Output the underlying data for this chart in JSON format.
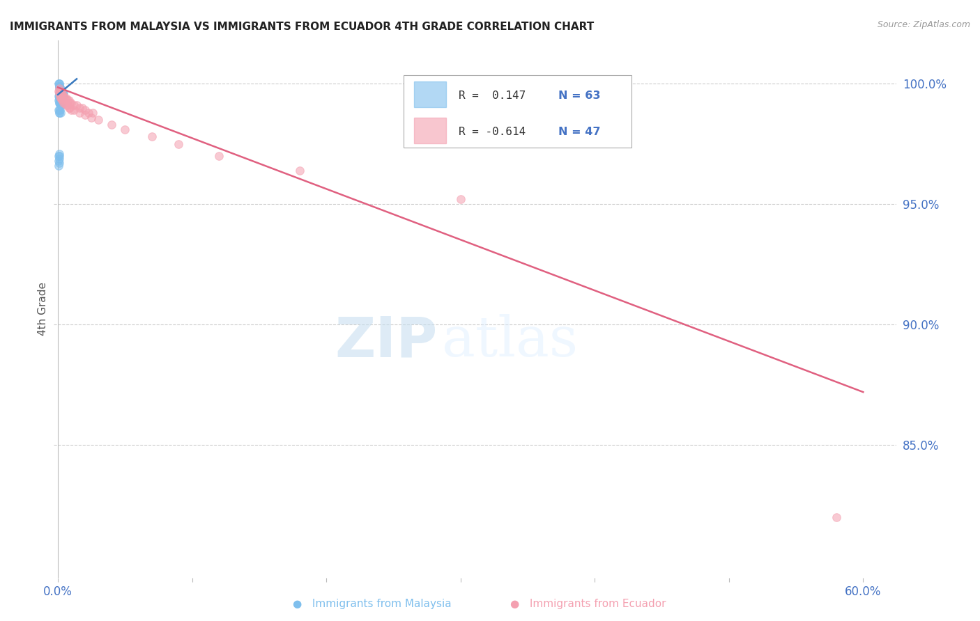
{
  "title": "IMMIGRANTS FROM MALAYSIA VS IMMIGRANTS FROM ECUADOR 4TH GRADE CORRELATION CHART",
  "source": "Source: ZipAtlas.com",
  "ylabel": "4th Grade",
  "yticks": [
    "100.0%",
    "95.0%",
    "90.0%",
    "85.0%"
  ],
  "ytick_values": [
    1.0,
    0.95,
    0.9,
    0.85
  ],
  "ymin": 0.795,
  "ymax": 1.018,
  "xmin": -0.003,
  "xmax": 0.625,
  "malaysia_color": "#7fbfed",
  "ecuador_color": "#f4a0b0",
  "malaysia_line_color": "#3a7abf",
  "ecuador_line_color": "#e06080",
  "legend_R_malaysia": "R =  0.147",
  "legend_N_malaysia": "N = 63",
  "legend_R_ecuador": "R = -0.614",
  "legend_N_ecuador": "N = 47",
  "malaysia_x": [
    0.0005,
    0.0008,
    0.001,
    0.001,
    0.001,
    0.0012,
    0.0012,
    0.0015,
    0.0015,
    0.0015,
    0.0018,
    0.0018,
    0.0018,
    0.002,
    0.002,
    0.002,
    0.0022,
    0.0022,
    0.0025,
    0.0025,
    0.0028,
    0.0028,
    0.003,
    0.003,
    0.003,
    0.0032,
    0.0035,
    0.0035,
    0.0038,
    0.004,
    0.0005,
    0.0008,
    0.001,
    0.001,
    0.0012,
    0.0015,
    0.0015,
    0.0018,
    0.0018,
    0.002,
    0.0005,
    0.0008,
    0.001,
    0.0012,
    0.0015,
    0.0015,
    0.0018,
    0.002,
    0.0022,
    0.0025,
    0.0005,
    0.0008,
    0.001,
    0.0012,
    0.0015,
    0.0018,
    0.0005,
    0.0008,
    0.001,
    0.0005,
    0.0012,
    0.0008,
    0.0005
  ],
  "malaysia_y": [
    1.0,
    1.0,
    1.0,
    0.999,
    0.999,
    0.999,
    0.998,
    0.998,
    0.998,
    0.997,
    0.997,
    0.997,
    0.997,
    0.997,
    0.998,
    0.996,
    0.997,
    0.996,
    0.997,
    0.996,
    0.997,
    0.996,
    0.997,
    0.996,
    0.995,
    0.997,
    0.996,
    0.995,
    0.996,
    0.996,
    0.995,
    0.996,
    0.995,
    0.994,
    0.995,
    0.994,
    0.993,
    0.994,
    0.993,
    0.994,
    0.993,
    0.993,
    0.992,
    0.992,
    0.993,
    0.992,
    0.992,
    0.991,
    0.992,
    0.991,
    0.989,
    0.989,
    0.988,
    0.988,
    0.989,
    0.988,
    0.97,
    0.97,
    0.971,
    0.968,
    0.969,
    0.967,
    0.966
  ],
  "ecuador_x": [
    0.0008,
    0.0012,
    0.0018,
    0.0025,
    0.003,
    0.0035,
    0.004,
    0.005,
    0.006,
    0.007,
    0.008,
    0.009,
    0.01,
    0.012,
    0.014,
    0.016,
    0.018,
    0.02,
    0.023,
    0.026,
    0.0005,
    0.001,
    0.0015,
    0.002,
    0.0025,
    0.003,
    0.0035,
    0.004,
    0.005,
    0.006,
    0.007,
    0.008,
    0.009,
    0.01,
    0.012,
    0.016,
    0.02,
    0.025,
    0.03,
    0.04,
    0.05,
    0.07,
    0.09,
    0.12,
    0.18,
    0.3,
    0.58
  ],
  "ecuador_y": [
    0.998,
    0.997,
    0.997,
    0.996,
    0.996,
    0.995,
    0.995,
    0.994,
    0.994,
    0.993,
    0.993,
    0.992,
    0.992,
    0.991,
    0.991,
    0.99,
    0.99,
    0.989,
    0.988,
    0.988,
    0.997,
    0.996,
    0.995,
    0.994,
    0.994,
    0.993,
    0.993,
    0.992,
    0.992,
    0.991,
    0.991,
    0.99,
    0.99,
    0.989,
    0.989,
    0.988,
    0.987,
    0.986,
    0.985,
    0.983,
    0.981,
    0.978,
    0.975,
    0.97,
    0.964,
    0.952,
    0.82
  ],
  "malaysia_line_x": [
    0.0,
    0.014
  ],
  "malaysia_line_y": [
    0.9955,
    1.002
  ],
  "ecuador_line_x": [
    0.0,
    0.6
  ],
  "ecuador_line_y": [
    0.9985,
    0.872
  ],
  "watermark_zip": "ZIP",
  "watermark_atlas": "atlas",
  "background_color": "#ffffff",
  "grid_color": "#cccccc",
  "title_color": "#222222",
  "axis_label_color": "#4472c4",
  "ylabel_color": "#555555"
}
